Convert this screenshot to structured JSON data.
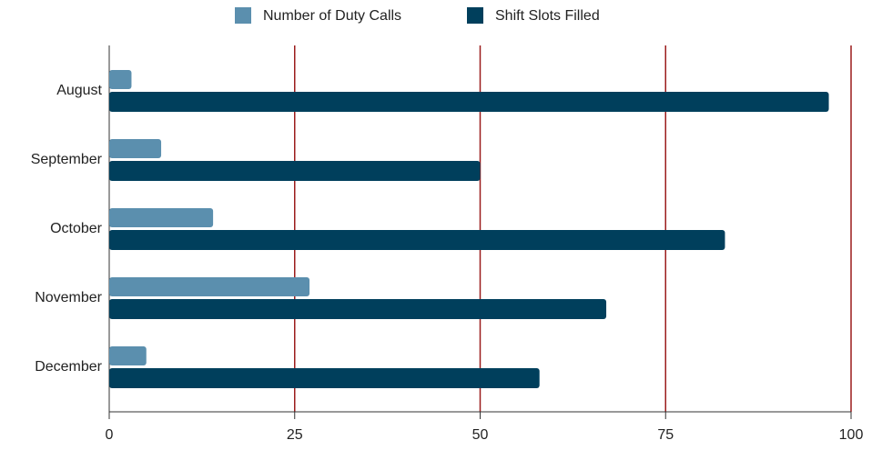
{
  "chart_data": {
    "type": "bar",
    "orientation": "horizontal",
    "categories": [
      "August",
      "September",
      "October",
      "November",
      "December"
    ],
    "series": [
      {
        "name": "Number of Duty Calls",
        "color": "#5b8fae",
        "values": [
          3,
          7,
          14,
          27,
          5
        ]
      },
      {
        "name": "Shift Slots Filled",
        "color": "#003f5c",
        "values": [
          97,
          50,
          83,
          67,
          58
        ]
      }
    ],
    "xlim": [
      0,
      100
    ],
    "xticks": [
      0,
      25,
      50,
      75,
      100
    ],
    "grid": true,
    "grid_color": "#9b1c1c",
    "legend": "top"
  }
}
